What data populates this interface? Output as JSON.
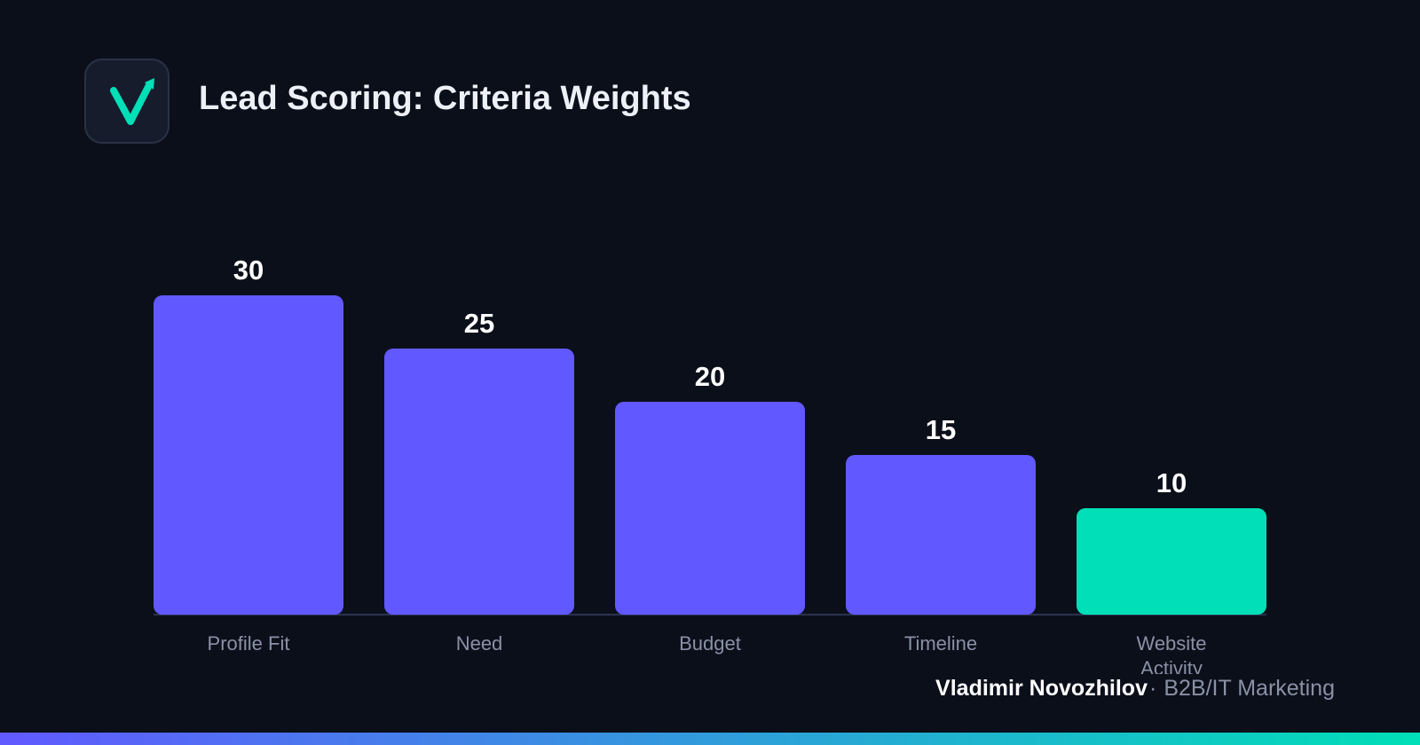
{
  "header": {
    "title": "Lead Scoring: Criteria Weights",
    "logo_icon": "checkmark-arrow-logo-icon"
  },
  "chart_data": {
    "type": "bar",
    "title": "Lead Scoring: Criteria Weights",
    "categories": [
      [
        "Profile Fit"
      ],
      [
        "Need"
      ],
      [
        "Budget"
      ],
      [
        "Timeline"
      ],
      [
        "Website",
        "Activity"
      ]
    ],
    "values": [
      30,
      25,
      20,
      15,
      10
    ],
    "data_labels": [
      "30",
      "25",
      "20",
      "15",
      "10"
    ],
    "colors": [
      "#6159ff",
      "#6159ff",
      "#6159ff",
      "#6159ff",
      "#00dfb7"
    ],
    "ylim": [
      0,
      30
    ],
    "grid": false,
    "legend": "none"
  },
  "footer": {
    "author": "Vladimir Novozhilov",
    "separator": "·",
    "role": "B2B/IT Marketing"
  },
  "theme": {
    "background": "#0b0f1a",
    "accent_primary": "#6159ff",
    "accent_secondary": "#00dfb7",
    "gradient": [
      "#6159ff",
      "#00dfb7"
    ]
  }
}
